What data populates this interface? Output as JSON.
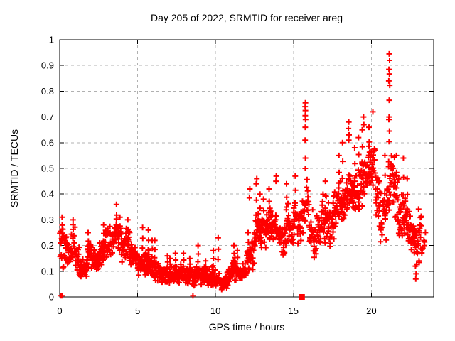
{
  "title": "Day 205 of 2022, SRMTID for receiver areg",
  "colors": {
    "marker": "#ff0000",
    "grid": "#b0b0b0",
    "frame": "#000000",
    "background": "#ffffff",
    "text": "#000000"
  },
  "chart_data": {
    "type": "scatter",
    "title": "Day 205 of 2022, SRMTID for receiver areg",
    "xlabel": "GPS time / hours",
    "ylabel": "SRMTID / TECUs",
    "xlim": [
      0,
      24
    ],
    "ylim": [
      0,
      1
    ],
    "xticks": [
      0,
      5,
      10,
      15,
      20
    ],
    "xtick_labels": [
      "0",
      "5",
      "10",
      "15",
      "20"
    ],
    "yticks": [
      0,
      0.1,
      0.2,
      0.3,
      0.4,
      0.5,
      0.6,
      0.7,
      0.8,
      0.9,
      1
    ],
    "ytick_labels": [
      "0",
      "0.1",
      "0.2",
      "0.3",
      "0.4",
      "0.5",
      "0.6",
      "0.7",
      "0.8",
      "0.9",
      "1"
    ],
    "grid": "dashed-gray-both-axes",
    "legend": "none",
    "series_name": "SRMTID",
    "marker": "plus",
    "marker_color": "#ff0000",
    "axis_marker": {
      "shape": "filled-square",
      "x": 15.55,
      "y": 0,
      "color": "#ff0000"
    },
    "point_cloud": {
      "comment": "dense band envelope read from plot; each bin = [dense_low, dense_high, spike_peak_or_null] in TECUs",
      "bin_width_hours": 0.25,
      "start_hour": 0,
      "points_per_bin": 16,
      "last_bin_points": 6,
      "bins": [
        [
          0.1,
          0.3,
          0.31
        ],
        [
          0.13,
          0.27,
          null
        ],
        [
          0.1,
          0.22,
          null
        ],
        [
          0.13,
          0.29,
          0.3
        ],
        [
          0.1,
          0.22,
          null
        ],
        [
          0.06,
          0.16,
          null
        ],
        [
          0.06,
          0.15,
          null
        ],
        [
          0.1,
          0.24,
          0.25
        ],
        [
          0.1,
          0.2,
          null
        ],
        [
          0.1,
          0.18,
          null
        ],
        [
          0.12,
          0.22,
          null
        ],
        [
          0.13,
          0.26,
          0.28
        ],
        [
          0.15,
          0.28,
          null
        ],
        [
          0.15,
          0.27,
          null
        ],
        [
          0.17,
          0.32,
          0.36
        ],
        [
          0.15,
          0.3,
          0.31
        ],
        [
          0.13,
          0.26,
          null
        ],
        [
          0.13,
          0.28,
          0.3
        ],
        [
          0.12,
          0.24,
          null
        ],
        [
          0.1,
          0.2,
          null
        ],
        [
          0.08,
          0.16,
          null
        ],
        [
          0.08,
          0.18,
          0.27
        ],
        [
          0.08,
          0.2,
          0.26
        ],
        [
          0.07,
          0.16,
          0.22
        ],
        [
          0.06,
          0.16,
          0.22
        ],
        [
          0.06,
          0.14,
          null
        ],
        [
          0.05,
          0.13,
          null
        ],
        [
          0.05,
          0.13,
          0.16
        ],
        [
          0.05,
          0.12,
          0.15
        ],
        [
          0.05,
          0.13,
          0.17
        ],
        [
          0.04,
          0.12,
          null
        ],
        [
          0.05,
          0.14,
          0.17
        ],
        [
          0.04,
          0.12,
          null
        ],
        [
          0.05,
          0.12,
          0.15
        ],
        [
          0.04,
          0.11,
          null
        ],
        [
          0.05,
          0.13,
          0.2
        ],
        [
          0.04,
          0.12,
          null
        ],
        [
          0.04,
          0.12,
          0.14
        ],
        [
          0.03,
          0.11,
          null
        ],
        [
          0.04,
          0.13,
          0.18
        ],
        [
          0.03,
          0.1,
          0.23
        ],
        [
          0.02,
          0.08,
          null
        ],
        [
          0.03,
          0.09,
          null
        ],
        [
          0.04,
          0.12,
          null
        ],
        [
          0.06,
          0.16,
          0.2
        ],
        [
          0.06,
          0.15,
          0.18
        ],
        [
          0.05,
          0.12,
          null
        ],
        [
          0.06,
          0.14,
          null
        ],
        [
          0.08,
          0.22,
          0.25
        ],
        [
          0.1,
          0.28,
          null
        ],
        [
          0.15,
          0.35,
          0.44
        ],
        [
          0.15,
          0.33,
          0.4
        ],
        [
          0.18,
          0.33,
          0.38
        ],
        [
          0.2,
          0.36,
          0.42
        ],
        [
          0.2,
          0.35,
          null
        ],
        [
          0.2,
          0.33,
          null
        ],
        [
          0.17,
          0.3,
          null
        ],
        [
          0.15,
          0.28,
          null
        ],
        [
          0.2,
          0.38,
          0.44
        ],
        [
          0.17,
          0.3,
          null
        ],
        [
          0.22,
          0.4,
          0.47
        ],
        [
          0.2,
          0.35,
          null
        ],
        [
          0.22,
          0.4,
          null
        ],
        [
          0.25,
          0.48,
          null
        ],
        [
          0.18,
          0.35,
          null
        ],
        [
          0.13,
          0.3,
          null
        ],
        [
          0.18,
          0.35,
          null
        ],
        [
          0.22,
          0.42,
          null
        ],
        [
          0.2,
          0.4,
          0.45
        ],
        [
          0.16,
          0.36,
          null
        ],
        [
          0.22,
          0.42,
          null
        ],
        [
          0.25,
          0.47,
          0.55
        ],
        [
          0.27,
          0.5,
          0.6
        ],
        [
          0.3,
          0.48,
          null
        ],
        [
          0.3,
          0.5,
          null
        ],
        [
          0.3,
          0.5,
          0.58
        ],
        [
          0.32,
          0.52,
          0.62
        ],
        [
          0.35,
          0.55,
          0.65
        ],
        [
          0.38,
          0.58,
          null
        ],
        [
          0.4,
          0.6,
          0.66
        ],
        [
          0.4,
          0.62,
          null
        ],
        [
          0.28,
          0.5,
          null
        ],
        [
          0.18,
          0.42,
          null
        ],
        [
          0.2,
          0.45,
          0.55
        ],
        [
          0.3,
          0.55,
          0.69
        ],
        [
          0.3,
          0.6,
          null
        ],
        [
          0.25,
          0.5,
          0.55
        ],
        [
          0.2,
          0.42,
          null
        ],
        [
          0.2,
          0.4,
          0.54
        ],
        [
          0.18,
          0.38,
          0.46
        ],
        [
          0.15,
          0.33,
          null
        ],
        [
          0.1,
          0.3,
          null
        ],
        [
          0.1,
          0.4,
          null
        ],
        [
          0.15,
          0.3,
          null
        ]
      ],
      "outlier_points": [
        [
          0.08,
          0.005
        ],
        [
          0.15,
          0.005
        ],
        [
          8.55,
          0.005
        ],
        [
          12.2,
          0.42
        ],
        [
          12.18,
          0.385
        ],
        [
          12.65,
          0.46
        ],
        [
          12.63,
          0.44
        ],
        [
          13.9,
          0.47
        ],
        [
          13.88,
          0.45
        ],
        [
          15.77,
          0.755
        ],
        [
          15.75,
          0.74
        ],
        [
          15.77,
          0.725
        ],
        [
          15.76,
          0.705
        ],
        [
          15.78,
          0.69
        ],
        [
          15.76,
          0.66
        ],
        [
          15.75,
          0.61
        ],
        [
          15.77,
          0.54
        ],
        [
          15.76,
          0.5
        ],
        [
          18.55,
          0.68
        ],
        [
          18.53,
          0.655
        ],
        [
          18.57,
          0.63
        ],
        [
          18.55,
          0.61
        ],
        [
          19.5,
          0.7
        ],
        [
          19.52,
          0.67
        ],
        [
          20.1,
          0.72
        ],
        [
          21.15,
          0.945
        ],
        [
          21.17,
          0.92
        ],
        [
          21.13,
          0.885
        ],
        [
          21.16,
          0.867
        ],
        [
          21.12,
          0.84
        ],
        [
          21.18,
          0.823
        ],
        [
          21.15,
          0.765
        ],
        [
          21.14,
          0.7
        ],
        [
          21.16,
          0.645
        ],
        [
          22.85,
          0.07
        ],
        [
          22.87,
          0.09
        ],
        [
          22.83,
          0.12
        ]
      ]
    }
  }
}
